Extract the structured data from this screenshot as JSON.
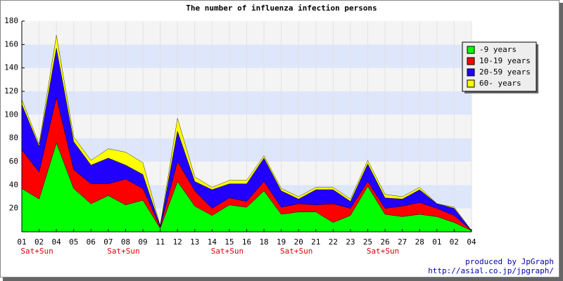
{
  "chart_data": {
    "type": "stacked_area",
    "title": "The number of influenza infection persons",
    "categories": [
      "01",
      "02",
      "04",
      "05",
      "06",
      "07",
      "08",
      "09",
      "11",
      "12",
      "13",
      "14",
      "15",
      "16",
      "18",
      "19",
      "20",
      "21",
      "22",
      "23",
      "25",
      "26",
      "27",
      "28",
      "01",
      "02",
      "04"
    ],
    "x_sublabels": [
      null,
      "Sat+Sun",
      null,
      null,
      null,
      null,
      "Sat+Sun",
      null,
      null,
      null,
      null,
      null,
      "Sat+Sun",
      null,
      null,
      null,
      "Sat+Sun",
      null,
      null,
      null,
      null,
      "Sat+Sun",
      null,
      null,
      null,
      null,
      null
    ],
    "series": [
      {
        "name": "-9 years",
        "color": "#00ff00",
        "values": [
          37,
          28,
          76,
          37,
          24,
          31,
          23,
          27,
          3,
          43,
          22,
          14,
          23,
          21,
          35,
          15,
          17,
          17,
          8,
          14,
          39,
          15,
          13,
          15,
          13,
          8,
          1
        ]
      },
      {
        "name": "10-19 years",
        "color": "#ff0000",
        "values": [
          33,
          23,
          39,
          16,
          17,
          10,
          22,
          10,
          1,
          17,
          13,
          6,
          6,
          5,
          8,
          6,
          7,
          6,
          16,
          6,
          4,
          5,
          9,
          10,
          7,
          6,
          0
        ]
      },
      {
        "name": "20-59 years",
        "color": "#2200ff",
        "values": [
          39,
          22,
          42,
          24,
          16,
          22,
          12,
          12,
          1,
          26,
          8,
          16,
          12,
          15,
          20,
          14,
          4,
          13,
          12,
          6,
          15,
          9,
          6,
          11,
          4,
          6,
          0
        ]
      },
      {
        "name": "60- years",
        "color": "#ffff00",
        "values": [
          4,
          2,
          11,
          4,
          4,
          8,
          11,
          10,
          0,
          11,
          4,
          2,
          3,
          3,
          2,
          2,
          2,
          2,
          2,
          2,
          3,
          3,
          2,
          2,
          0,
          1,
          0
        ]
      }
    ],
    "ylim": [
      0,
      180
    ],
    "yticks": [
      20,
      40,
      60,
      80,
      100,
      120,
      140,
      160,
      180
    ],
    "grid": true,
    "legend": "top-right",
    "footer": [
      "produced by JpGraph",
      "http://asial.co.jp/jpgraph/"
    ]
  }
}
